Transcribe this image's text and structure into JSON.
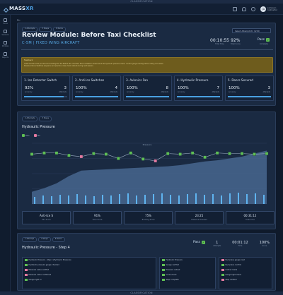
{
  "banners": {
    "top": "CLASSIFICATION",
    "bottom": "CLASSIFICATION"
  },
  "app": {
    "brand_main": "MASS",
    "brand_accent": "XR"
  },
  "user": {
    "initials": "JA",
    "name": "Jameson",
    "role": "Instructor"
  },
  "sidebar": {
    "items": [
      {
        "label": "Home",
        "icon": "home-icon"
      },
      {
        "label": "Sessions",
        "icon": "sessions-icon"
      },
      {
        "label": "Modules",
        "icon": "modules-icon"
      },
      {
        "label": "Reports",
        "icon": "reports-icon"
      }
    ]
  },
  "module": {
    "pills": [
      "2 Attempts",
      "3 Steps",
      "8 Items"
    ],
    "title": "Review Module: Before Taxi Checklist",
    "subtitle": "C-5M | FIXED WING AIRCRAFT",
    "select_value": "Select Attempt #1 (6/15)",
    "kpis": [
      {
        "value": "00:10:55",
        "label": "Total Time"
      },
      {
        "value": "92%",
        "label": "Total Score"
      }
    ],
    "pass_label": "Pass",
    "status_label": "Complete"
  },
  "warning": {
    "title": "Feedback",
    "body1": "Cadet showed solid procedural knowledge for the Before Taxi checklist. Minor hesitation observed at the hydraulic pressure check; confirm gauge reading before calling out values.",
    "body2": "Review Anti-Ice Switches sequence and practice cross-check callouts during next session."
  },
  "cards": [
    {
      "title": "1. Ice Detector Switch",
      "a": "92%",
      "a_label": "Accuracy",
      "b": "3",
      "b_label": "Attempts",
      "progress": 0.92
    },
    {
      "title": "2. Anti-Ice Switches",
      "a": "100%",
      "a_label": "Accuracy",
      "b": "4",
      "b_label": "Attempts",
      "progress": 1.0
    },
    {
      "title": "3. Avionics Fan",
      "a": "100%",
      "a_label": "Accuracy",
      "b": "8",
      "b_label": "Attempts",
      "progress": 1.0
    },
    {
      "title": "4. Hydraulic Pressure",
      "a": "100%",
      "a_label": "Accuracy",
      "b": "7",
      "b_label": "Attempts",
      "progress": 1.0
    },
    {
      "title": "5. Doors Secured",
      "a": "100%",
      "a_label": "Accuracy",
      "b": "3",
      "b_label": "Attempts",
      "progress": 1.0
    }
  ],
  "panel2": {
    "pills": [
      "2 Attempts",
      "3 Steps"
    ],
    "title": "Hydraulic Pressure",
    "legend": [
      {
        "label": "Pass",
        "color": "#5fbf54"
      },
      {
        "label": "Fail",
        "color": "#e47aa0"
      }
    ],
    "center_label": "Pressure"
  },
  "chart_data": {
    "type": "line",
    "title": "Hydraulic Pressure",
    "x": [
      1,
      2,
      3,
      4,
      5,
      6,
      7,
      8,
      9,
      10,
      11,
      12,
      13,
      14,
      15,
      16,
      17,
      18,
      19,
      20
    ],
    "series": [
      {
        "name": "Pass",
        "values": [
          82,
          84,
          84,
          80,
          78,
          83,
          82,
          75,
          84,
          74,
          71,
          83,
          82,
          84,
          77,
          84,
          83,
          83,
          82,
          83
        ],
        "status": [
          "p",
          "p",
          "p",
          "p",
          "f",
          "p",
          "p",
          "p",
          "p",
          "p",
          "f",
          "p",
          "p",
          "p",
          "p",
          "p",
          "p",
          "p",
          "p",
          "p"
        ]
      }
    ],
    "area": [
      20,
      26,
      34,
      46,
      55,
      56,
      57,
      58,
      59,
      60,
      61,
      62,
      64,
      67,
      70,
      72,
      75,
      78,
      83,
      88
    ],
    "bars": [
      10,
      12,
      11,
      13,
      12,
      14,
      12,
      11,
      13,
      12,
      14,
      15,
      12,
      13,
      14,
      15,
      13,
      12,
      14,
      15,
      13,
      14,
      12,
      15,
      16,
      14,
      15,
      13
    ],
    "ylim": [
      0,
      100
    ]
  },
  "stats": [
    {
      "value": "Anti-Ice S",
      "label": "Min Score"
    },
    {
      "value": "91%",
      "label": "Time Score"
    },
    {
      "value": "75%",
      "label": "Tracking Score"
    },
    {
      "value": "23:25",
      "label": "Distance Traveled"
    },
    {
      "value": "00:31:12",
      "label": "Total Time"
    }
  ],
  "panel3": {
    "pills": [
      "1 Attempt",
      "3 Steps",
      "8 Items"
    ],
    "title": "Hydraulic Pressure - Step 4",
    "pass_label": "Pass",
    "kpis": [
      {
        "value": "1",
        "label": "Attempts"
      },
      {
        "value": "00:01:12",
        "label": "Time"
      },
      {
        "value": "100%",
        "label": "Score"
      }
    ],
    "list_a": [
      {
        "text": "Hydraulic Pressure - Step 4 (Hydraulic Pressure)",
        "state": "on"
      },
      {
        "text": "Hydraulic pressure gauge checked",
        "state": "on"
      },
      {
        "text": "Pressure value verified",
        "state": "x"
      },
      {
        "text": "Pressure value confirmed",
        "state": "x"
      },
      {
        "text": "Gauge light on",
        "state": "on"
      }
    ],
    "list_b": [
      {
        "text": "Hydraulic Pressure",
        "state": "on"
      },
      {
        "text": "Gauge verified",
        "state": "on"
      },
      {
        "text": "Pressure callout",
        "state": "on"
      },
      {
        "text": "Cross-check",
        "state": "on"
      },
      {
        "text": "Step complete",
        "state": "on"
      }
    ],
    "list_c": [
      {
        "text": "Hyd press gauge read",
        "state": "x"
      },
      {
        "text": "Hyd press confirm",
        "state": "on"
      },
      {
        "text": "Callout made",
        "state": "x"
      },
      {
        "text": "Gauge light check",
        "state": "on"
      },
      {
        "text": "Step verified",
        "state": "x"
      }
    ]
  }
}
